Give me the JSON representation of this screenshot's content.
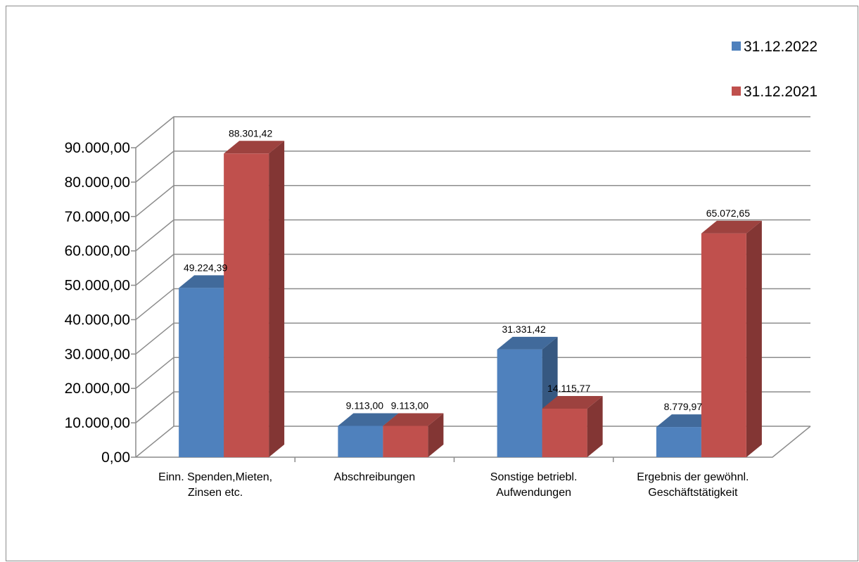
{
  "chart_data": {
    "type": "bar",
    "style": "3d-clustered-column",
    "title": "",
    "xlabel": "",
    "ylabel": "",
    "categories": [
      [
        "Einn. Spenden,Mieten,",
        "Zinsen etc."
      ],
      [
        "Abschreibungen"
      ],
      [
        "Sonstige betriebl.",
        "Aufwendungen"
      ],
      [
        "Ergebnis der gewöhnl.",
        "Geschäftstätigkeit"
      ]
    ],
    "series": [
      {
        "name": "31.12.2022",
        "color": "#4F81BD",
        "values": [
          49224.39,
          9113.0,
          31331.42,
          8779.97
        ],
        "labels": [
          "49.224,39",
          "9.113,00",
          "31.331,42",
          "8.779,97"
        ]
      },
      {
        "name": "31.12.2021",
        "color": "#C0504D",
        "values": [
          88301.42,
          9113.0,
          14115.77,
          65072.65
        ],
        "labels": [
          "88.301,42",
          "9.113,00",
          "14.115,77",
          "65.072,65"
        ]
      }
    ],
    "ylim": [
      0,
      90000
    ],
    "ytick_step": 10000,
    "yticks": [
      "0,00",
      "10.000,00",
      "20.000,00",
      "30.000,00",
      "40.000,00",
      "50.000,00",
      "60.000,00",
      "70.000,00",
      "80.000,00",
      "90.000,00"
    ],
    "grid": true,
    "legend": "top-right"
  }
}
